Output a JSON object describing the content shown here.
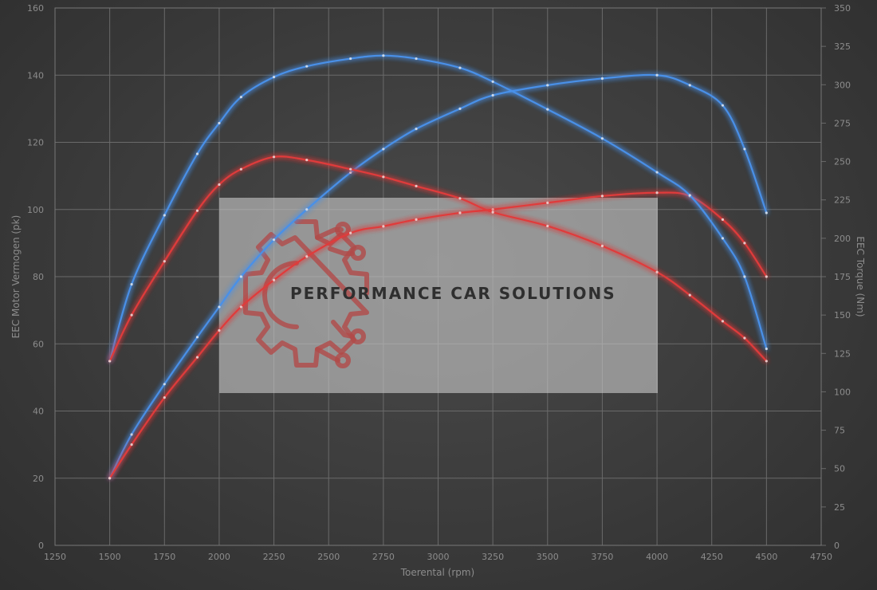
{
  "chart_data": {
    "type": "line",
    "xlabel": "Toerental (rpm)",
    "ylabel": "EEC Motor Vermogen (pk)",
    "ylabel_right": "EEC Torque (Nm)",
    "xlim": [
      1250,
      4750
    ],
    "ylim": [
      0,
      160
    ],
    "ylim_right": [
      0,
      350
    ],
    "x_ticks": [
      1250,
      1500,
      1750,
      2000,
      2250,
      2500,
      2750,
      3000,
      3250,
      3500,
      3750,
      4000,
      4250,
      4500,
      4750
    ],
    "y_ticks": [
      0,
      20,
      40,
      60,
      80,
      100,
      120,
      140,
      160
    ],
    "y_ticks_right": [
      0,
      25,
      50,
      75,
      100,
      125,
      150,
      175,
      200,
      225,
      250,
      275,
      300,
      325,
      350
    ],
    "grid": true,
    "series": [
      {
        "axis": "left",
        "color": "#4a90e8",
        "x": [
          1500,
          1600,
          1750,
          1900,
          2000,
          2100,
          2250,
          2400,
          2600,
          2750,
          2900,
          3100,
          3250,
          3500,
          3750,
          4000,
          4150,
          4300,
          4400,
          4500
        ],
        "values": [
          20,
          33,
          48,
          62,
          71,
          80,
          91,
          100,
          111,
          118,
          124,
          130,
          134,
          137,
          139,
          140,
          137,
          131,
          118,
          99
        ]
      },
      {
        "axis": "left",
        "color": "#e03a3a",
        "x": [
          1500,
          1600,
          1750,
          1900,
          2000,
          2100,
          2250,
          2400,
          2600,
          2750,
          2900,
          3100,
          3250,
          3500,
          3750,
          4000,
          4150,
          4300,
          4400,
          4500
        ],
        "values": [
          20,
          30,
          44,
          56,
          64,
          71,
          79,
          86,
          93,
          95,
          97,
          99,
          100,
          102,
          104,
          105,
          104,
          97,
          90,
          80
        ]
      },
      {
        "axis": "right",
        "color": "#4a90e8",
        "x": [
          1500,
          1600,
          1750,
          1900,
          2000,
          2100,
          2250,
          2400,
          2600,
          2750,
          2900,
          3100,
          3250,
          3500,
          3750,
          4000,
          4150,
          4300,
          4400,
          4500
        ],
        "values": [
          120,
          170,
          215,
          255,
          275,
          292,
          305,
          312,
          317,
          319,
          317,
          311,
          302,
          284,
          265,
          243,
          228,
          200,
          175,
          128
        ]
      },
      {
        "axis": "right",
        "color": "#e03a3a",
        "x": [
          1500,
          1600,
          1750,
          1900,
          2000,
          2100,
          2250,
          2400,
          2600,
          2750,
          2900,
          3100,
          3250,
          3500,
          3750,
          4000,
          4150,
          4300,
          4400,
          4500
        ],
        "values": [
          120,
          150,
          185,
          218,
          235,
          245,
          253,
          251,
          245,
          240,
          234,
          226,
          217,
          208,
          195,
          178,
          163,
          146,
          135,
          120
        ]
      }
    ]
  },
  "watermark": {
    "text": "PERFORMANCE CAR SOLUTIONS",
    "logo_color": "#b24a48",
    "box_color": "#c8c8c8"
  }
}
